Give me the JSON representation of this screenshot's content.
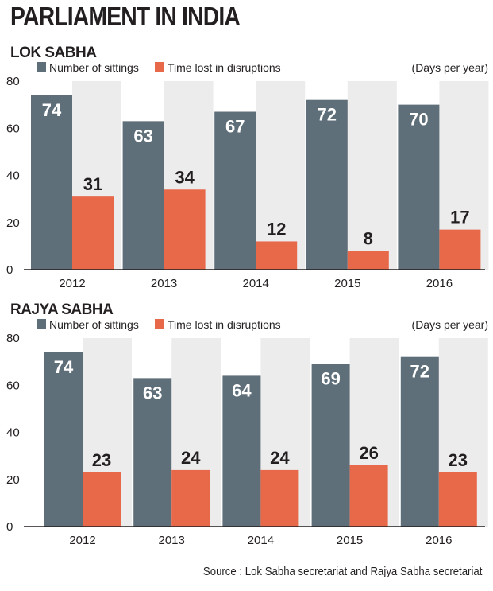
{
  "title": "PARLIAMENT IN INDIA",
  "source": "Source : Lok Sabha secretariat and Rajya Sabha secretariat",
  "colors": {
    "sittings": "#5f6f7a",
    "disruptions": "#e8684a",
    "band": "#ececec",
    "text": "#231f20"
  },
  "chart_data": [
    {
      "type": "bar",
      "title": "LOK SABHA",
      "unit_note": "(Days per year)",
      "categories": [
        "2012",
        "2013",
        "2014",
        "2015",
        "2016"
      ],
      "series": [
        {
          "name": "Number of sittings",
          "values": [
            74,
            63,
            67,
            72,
            70
          ]
        },
        {
          "name": "Time lost in disruptions",
          "values": [
            31,
            34,
            12,
            8,
            17
          ]
        }
      ],
      "ylim": [
        0,
        80
      ],
      "yticks": [
        "0",
        "20",
        "40",
        "60",
        "80"
      ],
      "legend_position": "top-left"
    },
    {
      "type": "bar",
      "title": "RAJYA SABHA",
      "unit_note": "(Days per year)",
      "categories": [
        "2012",
        "2013",
        "2014",
        "2015",
        "2016"
      ],
      "series": [
        {
          "name": "Number of sittings",
          "values": [
            74,
            63,
            64,
            69,
            72
          ]
        },
        {
          "name": "Time lost in disruptions",
          "values": [
            23,
            24,
            24,
            26,
            23
          ]
        }
      ],
      "ylim": [
        0,
        80
      ],
      "yticks": [
        "0",
        "20",
        "40",
        "60",
        "80"
      ],
      "legend_position": "top-left"
    }
  ]
}
